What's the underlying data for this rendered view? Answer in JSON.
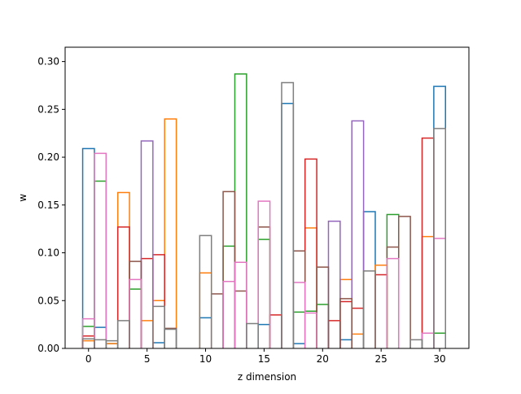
{
  "chart_data": {
    "type": "histogram-step",
    "title": "",
    "xlabel": "z dimension",
    "ylabel": "w",
    "xlim": [
      -2.0,
      32.5
    ],
    "ylim": [
      0,
      0.315
    ],
    "grid": false,
    "bins": [
      0,
      1,
      2,
      3,
      4,
      5,
      6,
      7,
      8,
      9,
      10,
      11,
      12,
      13,
      14,
      15,
      16,
      17,
      18,
      19,
      20,
      21,
      22,
      23,
      24,
      25,
      26,
      27,
      28,
      29,
      30
    ],
    "x_ticks": [
      0,
      5,
      10,
      15,
      20,
      25,
      30
    ],
    "y_ticks": [
      0.0,
      0.05,
      0.1,
      0.15,
      0.2,
      0.25,
      0.3
    ],
    "x_tick_labels": [
      "0",
      "5",
      "10",
      "15",
      "20",
      "25",
      "30"
    ],
    "y_tick_labels": [
      "0.00",
      "0.05",
      "0.10",
      "0.15",
      "0.20",
      "0.25",
      "0.30"
    ],
    "series": [
      {
        "color": "#1f77b4",
        "values": [
          0.209,
          0.022,
          0.005,
          0.0,
          0.0,
          0.0,
          0.006,
          0.0,
          0.0,
          0.0,
          0.032,
          0.0,
          0.0,
          0.0,
          0.0,
          0.025,
          0.0,
          0.256,
          0.005,
          0.0,
          0.0,
          0.0,
          0.009,
          0.0,
          0.143,
          0.0,
          0.0,
          0.0,
          0.0,
          0.0,
          0.274
        ]
      },
      {
        "color": "#ff7f0e",
        "values": [
          0.008,
          0.0,
          0.005,
          0.163,
          0.0,
          0.029,
          0.05,
          0.24,
          0.0,
          0.0,
          0.079,
          0.0,
          0.0,
          0.0,
          0.0,
          0.0,
          0.0,
          0.0,
          0.0,
          0.126,
          0.0,
          0.0,
          0.072,
          0.015,
          0.0,
          0.087,
          0.0,
          0.0,
          0.0,
          0.117,
          0.0
        ]
      },
      {
        "color": "#2ca02c",
        "values": [
          0.023,
          0.175,
          0.0,
          0.0,
          0.062,
          0.0,
          0.0,
          0.0,
          0.0,
          0.0,
          0.0,
          0.0,
          0.107,
          0.287,
          0.0,
          0.114,
          0.0,
          0.0,
          0.038,
          0.039,
          0.046,
          0.0,
          0.0,
          0.0,
          0.0,
          0.0,
          0.14,
          0.0,
          0.0,
          0.0,
          0.016
        ]
      },
      {
        "color": "#d62728",
        "values": [
          0.013,
          0.0,
          0.0,
          0.127,
          0.0,
          0.094,
          0.098,
          0.0,
          0.0,
          0.0,
          0.0,
          0.0,
          0.0,
          0.0,
          0.0,
          0.0,
          0.035,
          0.0,
          0.0,
          0.198,
          0.0,
          0.029,
          0.049,
          0.042,
          0.0,
          0.077,
          0.0,
          0.0,
          0.0,
          0.22,
          0.0
        ]
      },
      {
        "color": "#9467bd",
        "values": [
          0.0,
          0.0,
          0.0,
          0.0,
          0.0,
          0.217,
          0.0,
          0.0,
          0.0,
          0.0,
          0.0,
          0.0,
          0.0,
          0.0,
          0.0,
          0.0,
          0.0,
          0.0,
          0.0,
          0.0,
          0.0,
          0.133,
          0.0,
          0.238,
          0.0,
          0.0,
          0.0,
          0.0,
          0.0,
          0.0,
          0.0
        ]
      },
      {
        "color": "#8c564b",
        "values": [
          0.0,
          0.0,
          0.0,
          0.0,
          0.091,
          0.0,
          0.0,
          0.021,
          0.0,
          0.0,
          0.0,
          0.057,
          0.164,
          0.06,
          0.0,
          0.127,
          0.0,
          0.0,
          0.102,
          0.0,
          0.085,
          0.0,
          0.052,
          0.0,
          0.0,
          0.0,
          0.106,
          0.138,
          0.0,
          0.0,
          0.0
        ]
      },
      {
        "color": "#e377c2",
        "values": [
          0.031,
          0.204,
          0.0,
          0.0,
          0.072,
          0.0,
          0.0,
          0.0,
          0.0,
          0.0,
          0.0,
          0.0,
          0.07,
          0.09,
          0.0,
          0.154,
          0.0,
          0.0,
          0.069,
          0.037,
          0.0,
          0.0,
          0.0,
          0.0,
          0.0,
          0.0,
          0.094,
          0.0,
          0.0,
          0.016,
          0.115
        ]
      },
      {
        "color": "#7f7f7f",
        "values": [
          0.01,
          0.009,
          0.008,
          0.029,
          0.0,
          0.0,
          0.044,
          0.02,
          0.0,
          0.0,
          0.118,
          0.0,
          0.0,
          0.0,
          0.026,
          0.0,
          0.0,
          0.278,
          0.0,
          0.0,
          0.0,
          0.0,
          0.0,
          0.0,
          0.081,
          0.0,
          0.0,
          0.0,
          0.009,
          0.0,
          0.23
        ]
      }
    ]
  }
}
